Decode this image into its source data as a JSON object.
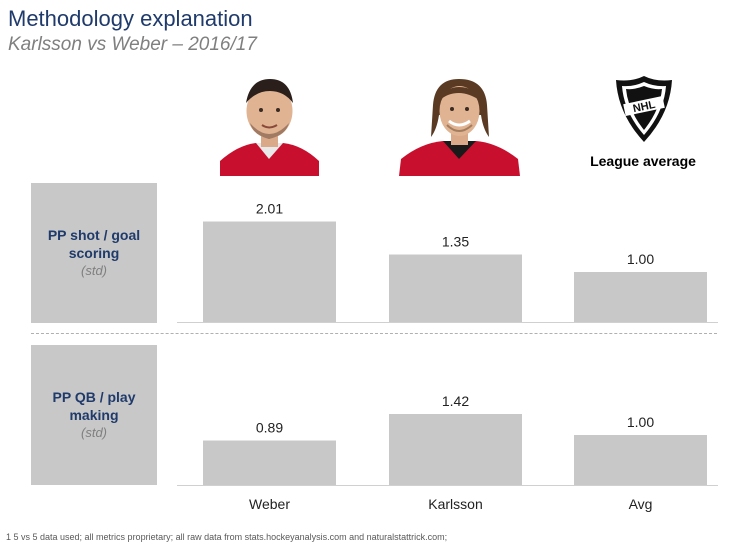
{
  "header": {
    "title": "Methodology explanation",
    "subtitle": "Karlsson vs Weber – 2016/17"
  },
  "players": [
    {
      "name": "Weber",
      "photo_icon": "player-photo-weber",
      "jersey_color": "#c8102e"
    },
    {
      "name": "Karlsson",
      "photo_icon": "player-photo-karlsson",
      "jersey_color": "#c8102e"
    }
  ],
  "league": {
    "label": "League average",
    "logo_icon": "nhl-shield-logo"
  },
  "rows": [
    {
      "title_line1": "PP shot / goal",
      "title_line2": "scoring",
      "sub": "(std)"
    },
    {
      "title_line1": "PP QB / play",
      "title_line2": "making",
      "sub": "(std)"
    }
  ],
  "chart_data": {
    "type": "bar",
    "categories": [
      "Weber",
      "Karlsson",
      "Avg"
    ],
    "series": [
      {
        "name": "PP shot / goal scoring (std)",
        "values": [
          2.01,
          1.35,
          1.0
        ],
        "labels": [
          "2.01",
          "1.35",
          "1.00"
        ]
      },
      {
        "name": "PP QB / play making (std)",
        "values": [
          0.89,
          1.42,
          1.0
        ],
        "labels": [
          "0.89",
          "1.42",
          "1.00"
        ]
      }
    ],
    "ylim": [
      0,
      2.3
    ],
    "bar_color": "#c8c8c8"
  },
  "footnote": "1 5 vs 5 data used; all metrics proprietary; all raw data from stats.hockeyanalysis.com and naturalstattrick.com;"
}
